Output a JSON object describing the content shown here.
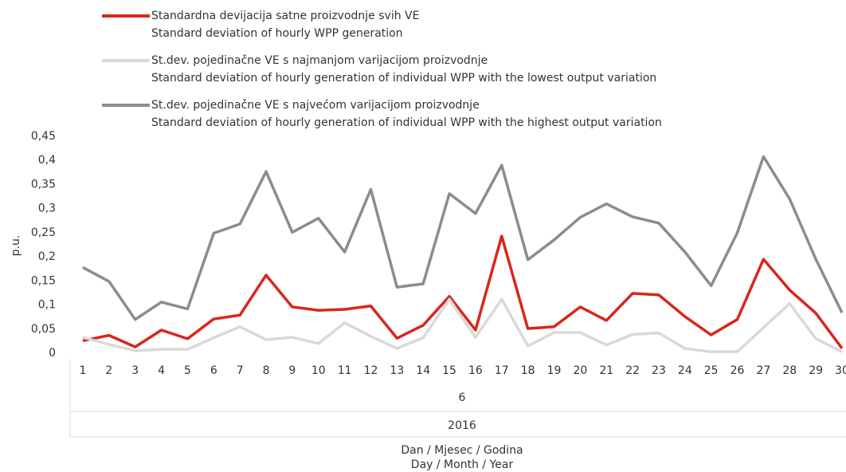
{
  "chart_data": {
    "type": "line",
    "y_label": "p.u.",
    "x_label": "Dan / Mjesec / Godina",
    "x_label_en": "Day / Month / Year",
    "month": "6",
    "year": "2016",
    "categories": [
      "1",
      "2",
      "3",
      "4",
      "5",
      "6",
      "7",
      "8",
      "9",
      "10",
      "11",
      "12",
      "13",
      "14",
      "15",
      "16",
      "17",
      "18",
      "19",
      "20",
      "21",
      "22",
      "23",
      "24",
      "25",
      "26",
      "27",
      "28",
      "29",
      "30"
    ],
    "series": [
      {
        "name": "Standardna devijacija satne proizvodnje svih VE",
        "name_en": "Standard deviation of hourly WPP generation",
        "color": "#d9261c",
        "values": [
          0.026,
          0.037,
          0.013,
          0.048,
          0.03,
          0.071,
          0.079,
          0.162,
          0.096,
          0.089,
          0.091,
          0.098,
          0.031,
          0.058,
          0.118,
          0.048,
          0.243,
          0.051,
          0.055,
          0.096,
          0.068,
          0.124,
          0.121,
          0.076,
          0.038,
          0.07,
          0.195,
          0.131,
          0.083,
          0.01
        ]
      },
      {
        "name": "St.dev. pojedinačne VE s najmanjom varijacijom proizvodnje",
        "name_en": "Standard deviation of hourly generation of individual WPP with the lowest output variation",
        "color": "#d9d9d9",
        "values": [
          0.033,
          0.018,
          0.005,
          0.008,
          0.008,
          0.032,
          0.055,
          0.028,
          0.033,
          0.02,
          0.063,
          0.035,
          0.01,
          0.032,
          0.112,
          0.033,
          0.112,
          0.015,
          0.043,
          0.043,
          0.017,
          0.039,
          0.042,
          0.01,
          0.003,
          0.003,
          0.053,
          0.103,
          0.03,
          0.003
        ]
      },
      {
        "name": "St.dev. pojedinačne VE s najvećom varijacijom proizvodnje",
        "name_en": "Standard deviation of hourly generation of individual WPP with the highest output variation",
        "color": "#8c8c8c",
        "values": [
          0.178,
          0.149,
          0.07,
          0.106,
          0.092,
          0.249,
          0.268,
          0.377,
          0.251,
          0.28,
          0.21,
          0.34,
          0.137,
          0.144,
          0.331,
          0.29,
          0.39,
          0.194,
          0.235,
          0.282,
          0.31,
          0.283,
          0.27,
          0.21,
          0.14,
          0.25,
          0.408,
          0.32,
          0.195,
          0.084
        ]
      }
    ],
    "ylim": [
      0,
      0.45
    ],
    "yticks": [
      0,
      {
        "value": 0.05,
        "label": "0,05"
      },
      {
        "value": 0.1,
        "label": "0,1"
      },
      {
        "value": 0.15,
        "label": "0,15"
      },
      {
        "value": 0.2,
        "label": "0,2"
      },
      {
        "value": 0.25,
        "label": "0,25"
      },
      {
        "value": 0.3,
        "label": "0,3"
      },
      {
        "value": 0.35,
        "label": "0,35"
      },
      {
        "value": 0.4,
        "label": "0,4"
      },
      {
        "value": 0.45,
        "label": "0,45"
      }
    ],
    "grid": false
  }
}
